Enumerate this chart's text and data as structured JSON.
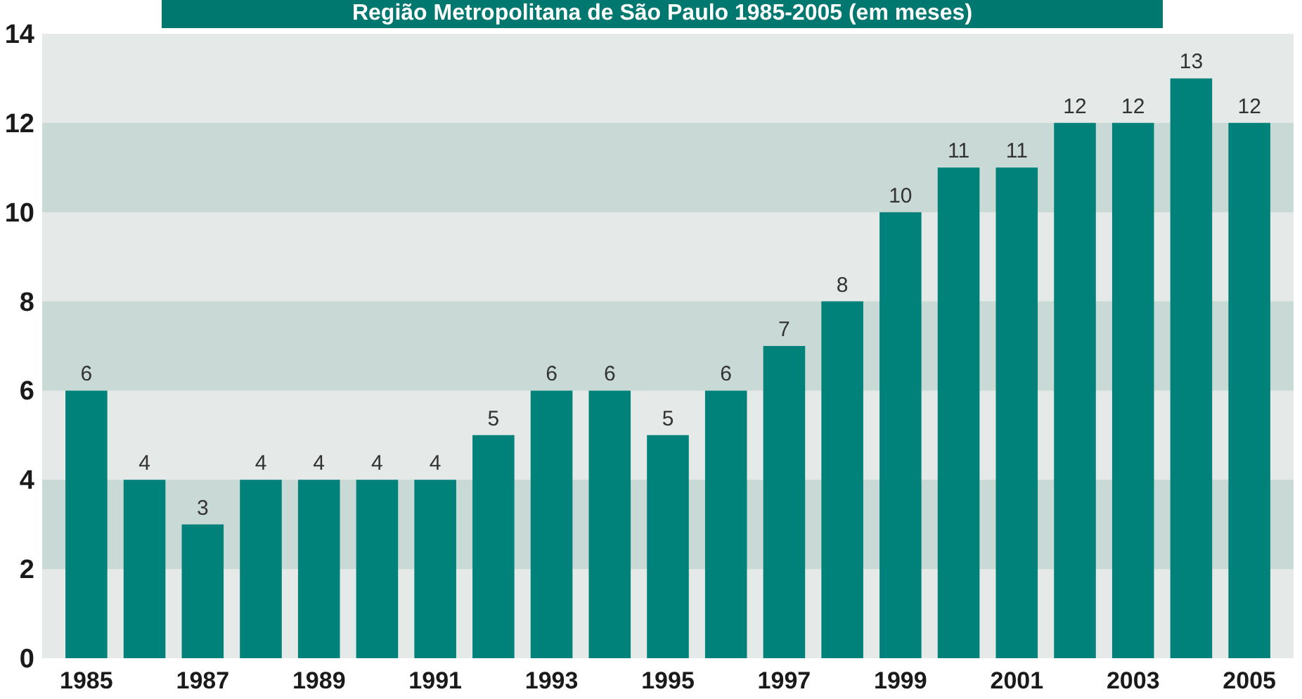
{
  "chart_data": {
    "type": "bar",
    "title": "Região Metropolitana de São Paulo 1985-2005 (em meses)",
    "categories": [
      "1985",
      null,
      "1987",
      null,
      "1989",
      null,
      "1991",
      null,
      "1993",
      null,
      "1995",
      null,
      "1997",
      null,
      "1999",
      null,
      "2001",
      null,
      "2003",
      null,
      "2005"
    ],
    "values": [
      6,
      4,
      3,
      4,
      4,
      4,
      4,
      5,
      6,
      6,
      5,
      6,
      7,
      8,
      10,
      11,
      11,
      12,
      12,
      13,
      12
    ],
    "color": "#00827a",
    "data_labels": true,
    "ylim": [
      0,
      14
    ],
    "yticks": [
      0,
      2,
      4,
      6,
      8,
      10,
      12,
      14
    ],
    "bands": [
      {
        "axis": "y",
        "from": 2,
        "to": 4,
        "color": "#c9d9d5"
      },
      {
        "axis": "y",
        "from": 6,
        "to": 8,
        "color": "#c9d9d5"
      },
      {
        "axis": "y",
        "from": 10,
        "to": 12,
        "color": "#c9d9d5"
      }
    ]
  }
}
